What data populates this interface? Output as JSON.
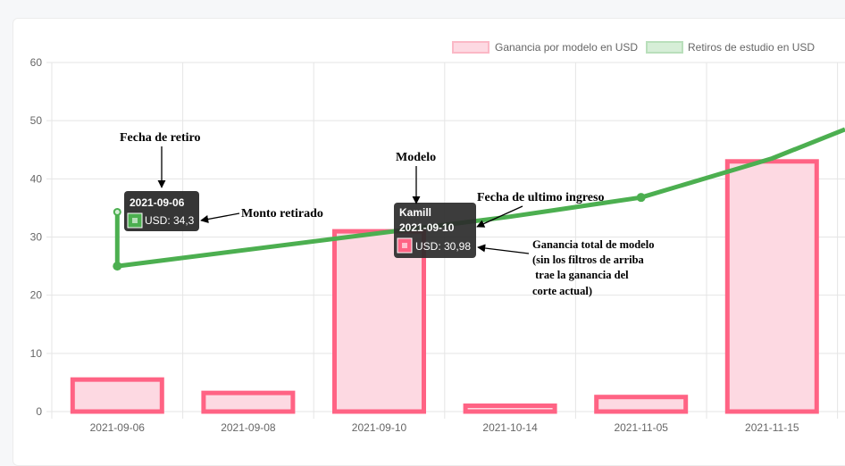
{
  "colors": {
    "bar_fill": "#fdd9e2",
    "bar_stroke": "#ff6384",
    "line": "#4caf50",
    "grid": "#e5e5e5",
    "tick": "#666666",
    "tooltip_bg": "#2b2b2b"
  },
  "chart_data": {
    "type": "bar",
    "categories": [
      "2021-09-06",
      "2021-09-08",
      "2021-09-10",
      "2021-10-14",
      "2021-11-05",
      "2021-11-15"
    ],
    "yticks": [
      "0",
      "10",
      "20",
      "30",
      "40",
      "50",
      "60"
    ],
    "ylim": [
      0,
      60
    ],
    "grid": true,
    "legend_position": "top-right",
    "series": [
      {
        "name": "Ganancia por modelo en USD",
        "type": "bar",
        "values": [
          5.5,
          3.2,
          30.98,
          1.0,
          2.5,
          43.0
        ]
      },
      {
        "name": "Retiros de estudio en USD",
        "type": "line",
        "points": [
          {
            "x": "2021-09-06",
            "y": 34.3
          },
          {
            "x": "2021-09-06",
            "y": 25.0
          },
          {
            "x": "2021-10-14",
            "y": 33.5
          },
          {
            "x": "2021-11-05",
            "y": 36.8
          },
          {
            "x": "2021-11-15",
            "y": 43.5
          }
        ],
        "tail_y": 48.5
      }
    ],
    "tooltips": [
      {
        "title": "2021-09-06",
        "value": "USD: 34,3",
        "swatch": "#4caf50"
      },
      {
        "subtitle": "Kamill",
        "title": "2021-09-10",
        "value": "USD: 30,98",
        "swatch": "#ff6384"
      }
    ],
    "annotations": {
      "fecha_retiro": "Fecha de retiro",
      "monto_retirado": "Monto retirado",
      "modelo": "Modelo",
      "fecha_ultimo": "Fecha de ultimo ingreso",
      "ganancia_lines": [
        "Ganancia total de modelo",
        "(sin los filtros de arriba",
        " trae la ganancia del",
        "corte actual)"
      ]
    }
  }
}
